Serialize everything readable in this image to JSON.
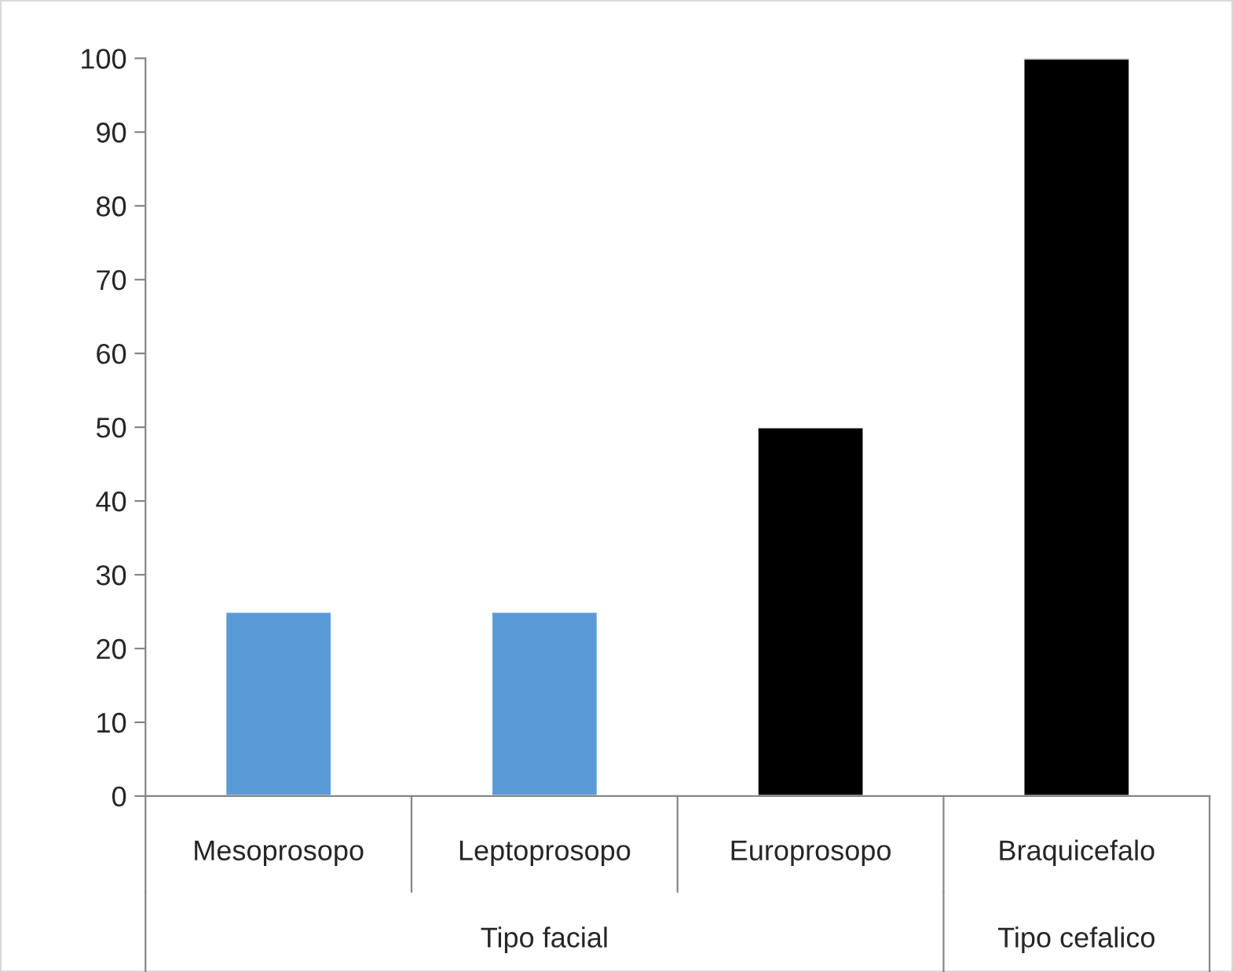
{
  "chart_data": {
    "type": "bar",
    "categories": [
      "Mesoprosopo",
      "Leptoprosopo",
      "Europrosopo",
      "Braquicefalo"
    ],
    "values": [
      25,
      25,
      50,
      100
    ],
    "colors": [
      "#5b9bd5",
      "#5b9bd5",
      "#000000",
      "#000000"
    ],
    "ylim": [
      0,
      100
    ],
    "yticks": [
      0,
      10,
      20,
      30,
      40,
      50,
      60,
      70,
      80,
      90,
      100
    ],
    "grid": false,
    "legend": false,
    "annotations": [
      "Tipo facial",
      "Tipo cefalico"
    ]
  }
}
